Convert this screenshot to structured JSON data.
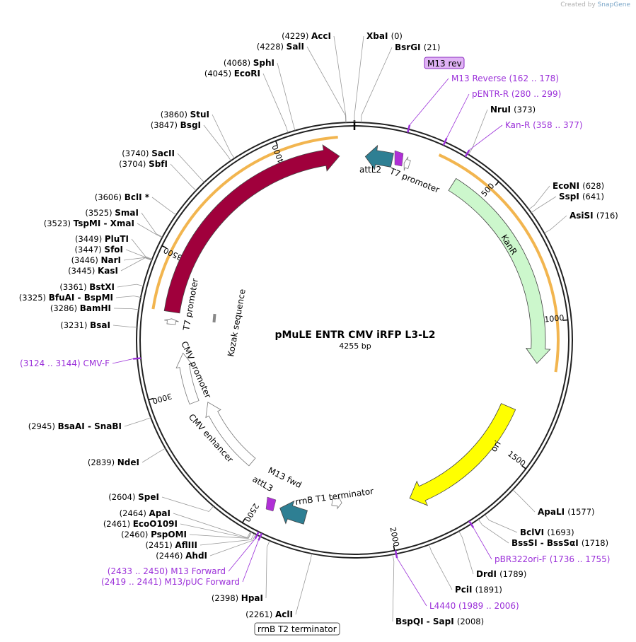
{
  "credit": {
    "prefix": "Created by",
    "brand": "SnapGene"
  },
  "plasmid": {
    "name": "pMuLE ENTR CMV iRFP L3-L2",
    "size_label": "4255 bp",
    "length": 4255
  },
  "colors": {
    "primer": "#9b30d9",
    "iRFP713": "#a0003c",
    "attL": "#2e7f93",
    "KanR": "#ccf7cc",
    "ori": "#ffff00",
    "highlight": "#f0a830"
  },
  "ticks": [
    "500",
    "1000",
    "1500",
    "2000",
    "2500",
    "3000",
    "3500",
    "4000"
  ],
  "features": [
    {
      "id": "irfp",
      "label": "iRFP713",
      "start": 3295,
      "end": 4200,
      "strand": 1,
      "color": "#a0003c"
    },
    {
      "id": "attl2",
      "label": "attL2",
      "start": 40,
      "end": 140,
      "strand": -1,
      "color": "#2e7f93"
    },
    {
      "id": "t7top",
      "label": "T7 promoter",
      "start": 185,
      "end": 205,
      "strand": -1,
      "color": "#ffffff"
    },
    {
      "id": "kanr",
      "label": "KanR",
      "start": 380,
      "end": 1150,
      "strand": 1,
      "color": "#ccf7cc"
    },
    {
      "id": "ori",
      "label": "ori",
      "start": 1340,
      "end": 1900,
      "strand": 1,
      "color": "#ffff00"
    },
    {
      "id": "rrnbt1",
      "label": "rrnB T1 terminator",
      "start": 2180,
      "end": 2220,
      "strand": -1,
      "color": "#ffffff"
    },
    {
      "id": "t7bot",
      "label": "T7 promoter",
      "start": 3250,
      "end": 3270,
      "strand": 1,
      "color": "#ffffff"
    },
    {
      "id": "cmvprom",
      "label": "CMV promoter",
      "start": 2940,
      "end": 3140,
      "strand": 1,
      "color": "#ffffff"
    },
    {
      "id": "cmvenh",
      "label": "CMV enhancer",
      "start": 2600,
      "end": 2920,
      "strand": 1,
      "color": "#ffffff"
    },
    {
      "id": "attl3",
      "label": "attL3",
      "start": 2310,
      "end": 2410,
      "strand": 1,
      "color": "#2e7f93"
    }
  ],
  "feature_texts": {
    "kozak": "Kozak sequence",
    "m13fwd": "M13 fwd",
    "rrnbt2": "rrnB T2 terminator",
    "m13rev": "M13 rev"
  },
  "sites": [
    {
      "name": "AccI",
      "pos": "(4229)",
      "bp": 4229
    },
    {
      "name": "SalI",
      "pos": "(4228)",
      "bp": 4228
    },
    {
      "name": "XbaI",
      "pos": "(0)",
      "bp": 0
    },
    {
      "name": "BsrGI",
      "pos": "(21)",
      "bp": 21
    },
    {
      "name": "SphI",
      "pos": "(4068)",
      "bp": 4068
    },
    {
      "name": "EcoRI",
      "pos": "(4045)",
      "bp": 4045
    },
    {
      "name": "NruI",
      "pos": "(373)",
      "bp": 373
    },
    {
      "name": "StuI",
      "pos": "(3860)",
      "bp": 3860
    },
    {
      "name": "BsgI",
      "pos": "(3847)",
      "bp": 3847
    },
    {
      "name": "SacII",
      "pos": "(3740)",
      "bp": 3740
    },
    {
      "name": "SbfI",
      "pos": "(3704)",
      "bp": 3704
    },
    {
      "name": "EcoNI",
      "pos": "(628)",
      "bp": 628
    },
    {
      "name": "SspI",
      "pos": "(641)",
      "bp": 641
    },
    {
      "name": "AsiSI",
      "pos": "(716)",
      "bp": 716
    },
    {
      "name": "BclI *",
      "pos": "(3606)",
      "bp": 3606
    },
    {
      "name": "SmaI",
      "pos": "(3525)",
      "bp": 3525
    },
    {
      "name": "TspMI  - XmaI",
      "pos": "(3523)",
      "bp": 3523
    },
    {
      "name": "PluTI",
      "pos": "(3449)",
      "bp": 3449
    },
    {
      "name": "SfoI",
      "pos": "(3447)",
      "bp": 3447
    },
    {
      "name": "NarI",
      "pos": "(3446)",
      "bp": 3446
    },
    {
      "name": "KasI",
      "pos": "(3445)",
      "bp": 3445
    },
    {
      "name": "BstXI",
      "pos": "(3361)",
      "bp": 3361
    },
    {
      "name": "BfuAI  - BspMI",
      "pos": "(3325)",
      "bp": 3325
    },
    {
      "name": "BamHI",
      "pos": "(3286)",
      "bp": 3286
    },
    {
      "name": "BsaI",
      "pos": "(3231)",
      "bp": 3231
    },
    {
      "name": "BsaAI  - SnaBI",
      "pos": "(2945)",
      "bp": 2945
    },
    {
      "name": "NdeI",
      "pos": "(2839)",
      "bp": 2839
    },
    {
      "name": "SpeI",
      "pos": "(2604)",
      "bp": 2604
    },
    {
      "name": "ApaI",
      "pos": "(2464)",
      "bp": 2464
    },
    {
      "name": "EcoO109I",
      "pos": "(2461)",
      "bp": 2461
    },
    {
      "name": "PspOMI",
      "pos": "(2460)",
      "bp": 2460
    },
    {
      "name": "AflIII",
      "pos": "(2451)",
      "bp": 2451
    },
    {
      "name": "AhdI",
      "pos": "(2446)",
      "bp": 2446
    },
    {
      "name": "HpaI",
      "pos": "(2398)",
      "bp": 2398
    },
    {
      "name": "AclI",
      "pos": "(2261)",
      "bp": 2261
    },
    {
      "name": "ApaLI",
      "pos": "(1577)",
      "bp": 1577
    },
    {
      "name": "BclVI",
      "pos": "(1693)",
      "bp": 1693
    },
    {
      "name": "BssSI  - BssSαI",
      "pos": "(1718)",
      "bp": 1718
    },
    {
      "name": "DrdI",
      "pos": "(1789)",
      "bp": 1789
    },
    {
      "name": "PciI",
      "pos": "(1891)",
      "bp": 1891
    },
    {
      "name": "BspQI  - SapI",
      "pos": "(2008)",
      "bp": 2008
    }
  ],
  "primers": [
    {
      "name": "M13 Reverse",
      "range": "(162 .. 178)",
      "bp": 170
    },
    {
      "name": "pENTR-R",
      "range": "(280 .. 299)",
      "bp": 290
    },
    {
      "name": "Kan-R",
      "range": "(358 .. 377)",
      "bp": 368
    },
    {
      "name": "CMV-F",
      "range": "(3124 .. 3144)",
      "bp": 3134
    },
    {
      "name": "pBR322ori-F",
      "range": "(1736 .. 1755)",
      "bp": 1745
    },
    {
      "name": "L4440",
      "range": "(1989 .. 2006)",
      "bp": 1997
    },
    {
      "name": "M13 Forward",
      "range": "(2433 .. 2450)",
      "bp": 2441
    },
    {
      "name": "M13/pUC Forward",
      "range": "(2419 .. 2441)",
      "bp": 2430
    }
  ]
}
